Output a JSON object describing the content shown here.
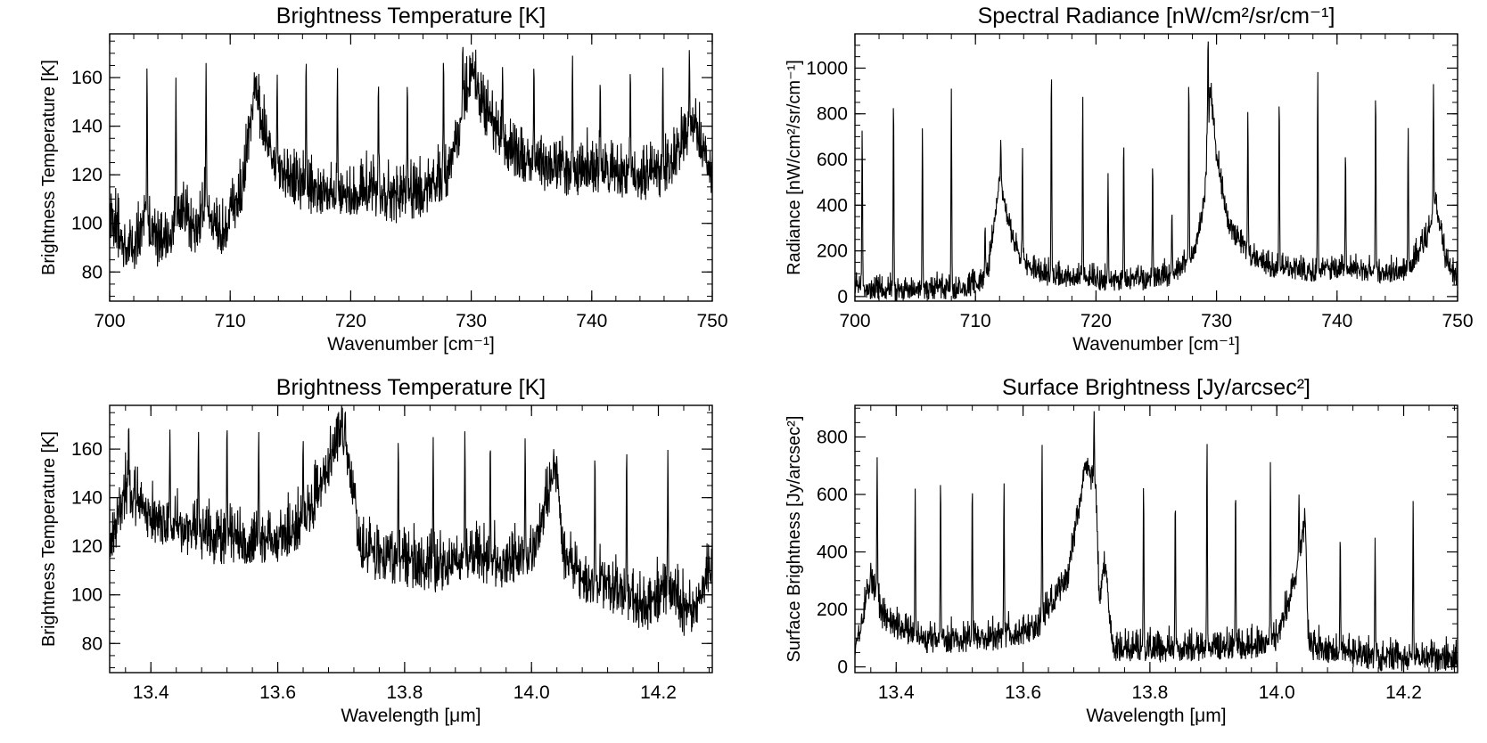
{
  "chart_data": [
    {
      "type": "line",
      "title": "Brightness Temperature [K]",
      "xlabel": "Wavenumber [cm⁻¹]",
      "ylabel": "Brightness Temperature [K]",
      "xlim": [
        700,
        750
      ],
      "ylim": [
        68,
        178
      ],
      "xticks": [
        700,
        710,
        720,
        730,
        740,
        750
      ],
      "yticks": [
        80,
        100,
        120,
        140,
        160
      ],
      "series": [
        {
          "baseline": [
            [
              700,
              102
            ],
            [
              701,
              89
            ],
            [
              702,
              87
            ],
            [
              703,
              100
            ],
            [
              704,
              89
            ],
            [
              705,
              91
            ],
            [
              706,
              105
            ],
            [
              707,
              92
            ],
            [
              708,
              106
            ],
            [
              709,
              91
            ],
            [
              710,
              101
            ],
            [
              711,
              110
            ],
            [
              712,
              150
            ],
            [
              713,
              130
            ],
            [
              714,
              120
            ],
            [
              716,
              112
            ],
            [
              718,
              110
            ],
            [
              720,
              108
            ],
            [
              722,
              110
            ],
            [
              724,
              107
            ],
            [
              726,
              110
            ],
            [
              728,
              118
            ],
            [
              729,
              135
            ],
            [
              730,
              160
            ],
            [
              731,
              145
            ],
            [
              733,
              128
            ],
            [
              735,
              122
            ],
            [
              738,
              118
            ],
            [
              741,
              120
            ],
            [
              744,
              116
            ],
            [
              746,
              118
            ],
            [
              747.5,
              130
            ],
            [
              748.5,
              140
            ],
            [
              749.5,
              122
            ],
            [
              750,
              118
            ]
          ],
          "noise": 15,
          "peaks": [
            [
              703.1,
              165
            ],
            [
              705.5,
              160
            ],
            [
              708,
              166
            ],
            [
              712.1,
              160
            ],
            [
              713.9,
              162
            ],
            [
              716.3,
              170
            ],
            [
              718.9,
              165
            ],
            [
              722.3,
              160
            ],
            [
              724.7,
              160
            ],
            [
              727.7,
              170
            ],
            [
              729.3,
              175
            ],
            [
              732.6,
              165
            ],
            [
              735.2,
              167
            ],
            [
              738.4,
              170
            ],
            [
              740.7,
              160
            ],
            [
              743.2,
              165
            ],
            [
              745.9,
              165
            ],
            [
              748.1,
              172
            ]
          ]
        }
      ]
    },
    {
      "type": "line",
      "title": "Spectral Radiance [nW/cm²/sr/cm⁻¹]",
      "xlabel": "Wavenumber [cm⁻¹]",
      "ylabel": "Radiance [nW/cm²/sr/cm⁻¹]",
      "xlim": [
        700,
        750
      ],
      "ylim": [
        -20,
        1150
      ],
      "xticks": [
        700,
        710,
        720,
        730,
        740,
        750
      ],
      "yticks": [
        0,
        200,
        400,
        600,
        800,
        1000
      ],
      "series": [
        {
          "baseline": [
            [
              700,
              40
            ],
            [
              702,
              10
            ],
            [
              704,
              15
            ],
            [
              706,
              25
            ],
            [
              708,
              20
            ],
            [
              710,
              40
            ],
            [
              711,
              80
            ],
            [
              712,
              500
            ],
            [
              713,
              250
            ],
            [
              714,
              130
            ],
            [
              716,
              80
            ],
            [
              718,
              70
            ],
            [
              720,
              60
            ],
            [
              724,
              60
            ],
            [
              726,
              80
            ],
            [
              728,
              150
            ],
            [
              729,
              400
            ],
            [
              729.5,
              900
            ],
            [
              730,
              600
            ],
            [
              731,
              300
            ],
            [
              733,
              150
            ],
            [
              735,
              110
            ],
            [
              738,
              100
            ],
            [
              741,
              110
            ],
            [
              744,
              90
            ],
            [
              746,
              110
            ],
            [
              747.5,
              250
            ],
            [
              748.2,
              400
            ],
            [
              749,
              150
            ],
            [
              750,
              60
            ]
          ],
          "noise": 70,
          "peaks": [
            [
              700.6,
              740
            ],
            [
              703.2,
              890
            ],
            [
              705.6,
              750
            ],
            [
              708.0,
              910
            ],
            [
              710.8,
              320
            ],
            [
              712.1,
              690
            ],
            [
              713.9,
              660
            ],
            [
              716.3,
              1020
            ],
            [
              718.9,
              890
            ],
            [
              721.0,
              540
            ],
            [
              722.3,
              700
            ],
            [
              724.7,
              600
            ],
            [
              726.3,
              380
            ],
            [
              727.7,
              980
            ],
            [
              729.3,
              1150
            ],
            [
              732.6,
              820
            ],
            [
              735.2,
              890
            ],
            [
              738.4,
              1000
            ],
            [
              740.7,
              650
            ],
            [
              743.2,
              920
            ],
            [
              745.9,
              750
            ],
            [
              748.0,
              930
            ]
          ]
        }
      ]
    },
    {
      "type": "line",
      "title": "Brightness Temperature [K]",
      "xlabel": "Wavelength [μm]",
      "ylabel": "Brightness Temperature [K]",
      "xlim": [
        13.335,
        14.285
      ],
      "ylim": [
        68,
        178
      ],
      "xticks": [
        13.4,
        13.6,
        13.8,
        14.0,
        14.2
      ],
      "yticks": [
        80,
        100,
        120,
        140,
        160
      ],
      "series": [
        {
          "baseline": [
            [
              13.335,
              118
            ],
            [
              13.36,
              140
            ],
            [
              13.4,
              128
            ],
            [
              13.5,
              120
            ],
            [
              13.6,
              120
            ],
            [
              13.65,
              130
            ],
            [
              13.7,
              165
            ],
            [
              13.72,
              140
            ],
            [
              13.73,
              115
            ],
            [
              13.78,
              112
            ],
            [
              13.85,
              108
            ],
            [
              13.9,
              112
            ],
            [
              13.95,
              110
            ],
            [
              14.0,
              115
            ],
            [
              14.04,
              150
            ],
            [
              14.05,
              112
            ],
            [
              14.08,
              105
            ],
            [
              14.12,
              100
            ],
            [
              14.15,
              97
            ],
            [
              14.18,
              92
            ],
            [
              14.22,
              100
            ],
            [
              14.24,
              90
            ],
            [
              14.26,
              92
            ],
            [
              14.285,
              112
            ]
          ],
          "noise": 15,
          "peaks": [
            [
              13.365,
              172
            ],
            [
              13.43,
              168
            ],
            [
              13.475,
              168
            ],
            [
              13.52,
              172
            ],
            [
              13.57,
              168
            ],
            [
              13.64,
              165
            ],
            [
              13.706,
              175
            ],
            [
              13.79,
              165
            ],
            [
              13.845,
              165
            ],
            [
              13.895,
              168
            ],
            [
              13.935,
              165
            ],
            [
              13.99,
              165
            ],
            [
              14.035,
              160
            ],
            [
              14.1,
              160
            ],
            [
              14.15,
              162
            ],
            [
              14.215,
              160
            ]
          ]
        }
      ]
    },
    {
      "type": "line",
      "title": "Surface Brightness [Jy/arcsec²]",
      "xlabel": "Wavelength [μm]",
      "ylabel": "Surface Brightness [Jy/arcsec²]",
      "xlim": [
        13.335,
        14.285
      ],
      "ylim": [
        -20,
        910
      ],
      "xticks": [
        13.4,
        13.6,
        13.8,
        14.0,
        14.2
      ],
      "yticks": [
        0,
        200,
        400,
        600,
        800
      ],
      "series": [
        {
          "baseline": [
            [
              13.335,
              40
            ],
            [
              13.36,
              300
            ],
            [
              13.38,
              150
            ],
            [
              13.45,
              80
            ],
            [
              13.55,
              90
            ],
            [
              13.62,
              120
            ],
            [
              13.67,
              300
            ],
            [
              13.7,
              700
            ],
            [
              13.715,
              600
            ],
            [
              13.72,
              200
            ],
            [
              13.73,
              350
            ],
            [
              13.74,
              50
            ],
            [
              13.85,
              50
            ],
            [
              13.95,
              60
            ],
            [
              14.0,
              80
            ],
            [
              14.03,
              300
            ],
            [
              14.045,
              500
            ],
            [
              14.05,
              60
            ],
            [
              14.15,
              20
            ],
            [
              14.285,
              15
            ]
          ],
          "noise": 70,
          "peaks": [
            [
              13.37,
              730
            ],
            [
              13.43,
              620
            ],
            [
              13.47,
              670
            ],
            [
              13.52,
              650
            ],
            [
              13.57,
              650
            ],
            [
              13.63,
              780
            ],
            [
              13.712,
              890
            ],
            [
              13.79,
              650
            ],
            [
              13.84,
              600
            ],
            [
              13.89,
              800
            ],
            [
              13.935,
              640
            ],
            [
              13.99,
              720
            ],
            [
              14.035,
              600
            ],
            [
              14.1,
              470
            ],
            [
              14.155,
              450
            ],
            [
              14.215,
              580
            ]
          ]
        }
      ]
    }
  ]
}
